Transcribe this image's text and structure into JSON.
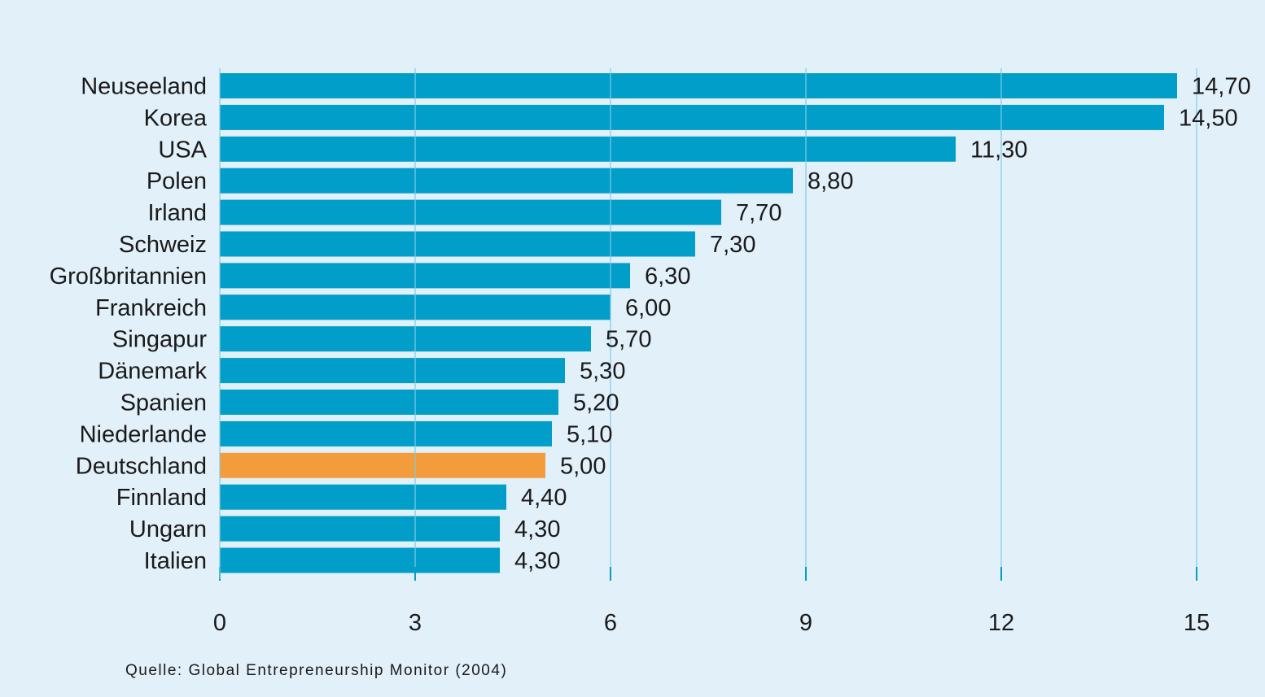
{
  "chart_data": {
    "type": "bar",
    "orientation": "horizontal",
    "categories": [
      "Neuseeland",
      "Korea",
      "USA",
      "Polen",
      "Irland",
      "Schweiz",
      "Großbritannien",
      "Frankreich",
      "Singapur",
      "Dänemark",
      "Spanien",
      "Niederlande",
      "Deutschland",
      "Finnland",
      "Ungarn",
      "Italien"
    ],
    "values": [
      14.7,
      14.5,
      11.3,
      8.8,
      7.7,
      7.3,
      6.3,
      6.0,
      5.7,
      5.3,
      5.2,
      5.1,
      5.0,
      4.4,
      4.3,
      4.3
    ],
    "value_labels": [
      "14,70",
      "14,50",
      "11,30",
      "8,80",
      "7,70",
      "7,30",
      "6,30",
      "6,00",
      "5,70",
      "5,30",
      "5,20",
      "5,10",
      "5,00",
      "4,40",
      "4,30",
      "4,30"
    ],
    "highlight_category": "Deutschland",
    "xlim": [
      0,
      15
    ],
    "x_ticks": [
      0,
      3,
      6,
      9,
      12,
      15
    ],
    "x_tick_labels": [
      "0",
      "3",
      "6",
      "9",
      "12",
      "15"
    ],
    "grid": true,
    "title": "",
    "xlabel": "",
    "ylabel": ""
  },
  "colors": {
    "background": "#e2f0f9",
    "bar": "#009ec8",
    "highlight": "#f39c3b",
    "grid": "#7fcbe6",
    "axis": "#009ec8"
  },
  "source": "Quelle: Global Entrepreneurship Monitor (2004)"
}
